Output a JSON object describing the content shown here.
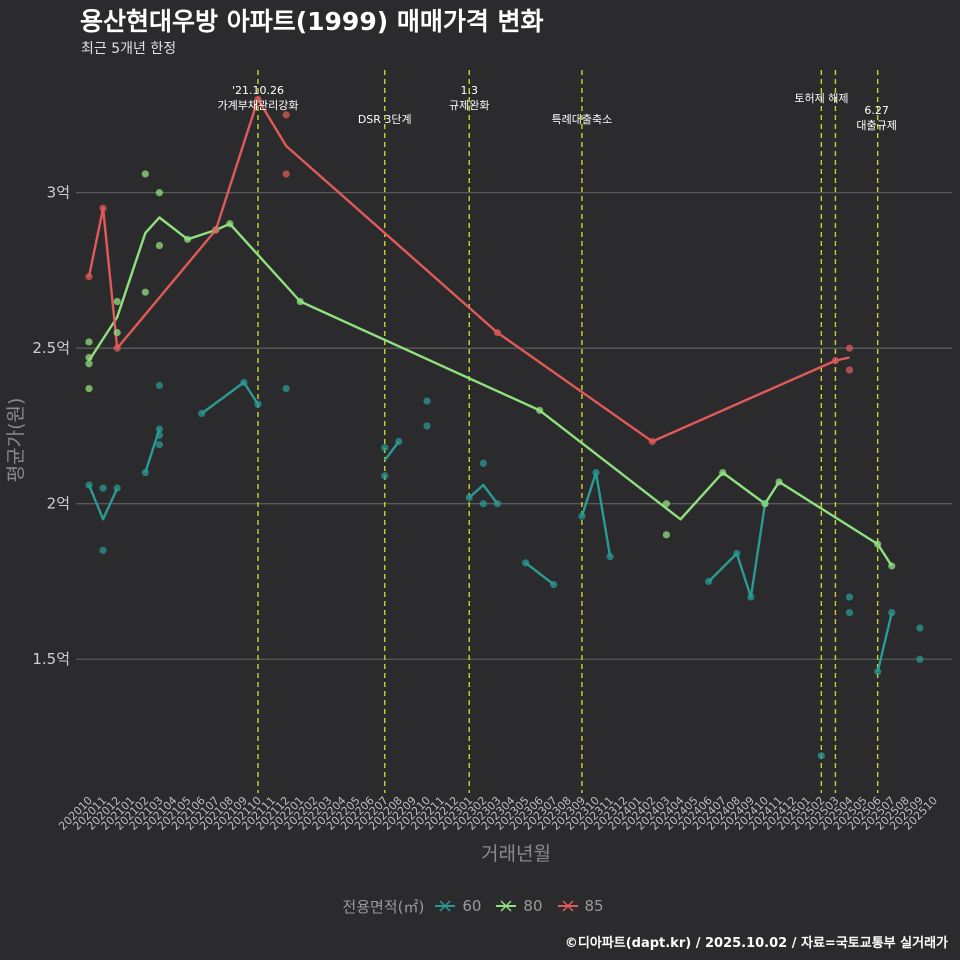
{
  "header": {
    "title": "용산현대우방 아파트(1999) 매매가격 변화",
    "subtitle": "최근 5개년 한정"
  },
  "footer": {
    "caption": "©디아파트(dapt.kr) / 2025.10.02 / 자료=국토교통부 실거래가"
  },
  "legend": {
    "title": "전용면적(㎡)",
    "items": [
      {
        "name": "60",
        "color": "#2a9a93"
      },
      {
        "name": "80",
        "color": "#90e07f"
      },
      {
        "name": "85",
        "color": "#e05a5a"
      }
    ]
  },
  "chart_data": {
    "type": "line",
    "title": "용산현대우방 아파트(1999) 매매가격 변화",
    "xlabel": "거래년월",
    "ylabel": "평균가(원)",
    "ylim": [
      1.07,
      3.42
    ],
    "y_ticks": [
      1.5,
      2.0,
      2.5,
      3.0
    ],
    "y_tick_labels": [
      "1.5억",
      "2억",
      "2.5억",
      "3억"
    ],
    "categories": [
      "202010",
      "202011",
      "202012",
      "202101",
      "202102",
      "202103",
      "202104",
      "202105",
      "202106",
      "202107",
      "202108",
      "202109",
      "202110",
      "202111",
      "202112",
      "202201",
      "202202",
      "202203",
      "202204",
      "202205",
      "202206",
      "202207",
      "202208",
      "202209",
      "202210",
      "202211",
      "202212",
      "202301",
      "202302",
      "202303",
      "202304",
      "202305",
      "202306",
      "202307",
      "202308",
      "202309",
      "202310",
      "202311",
      "202312",
      "202401",
      "202402",
      "202403",
      "202404",
      "202405",
      "202406",
      "202407",
      "202408",
      "202409",
      "202410",
      "202411",
      "202412",
      "202501",
      "202502",
      "202503",
      "202504",
      "202505",
      "202506",
      "202507",
      "202508",
      "202509",
      "202510"
    ],
    "series": [
      {
        "name": "60",
        "color": "#2a9a93",
        "line": [
          [
            "202010",
            2.06
          ],
          [
            "202011",
            1.95
          ],
          [
            "202012",
            2.05
          ],
          null,
          [
            "202102",
            2.1
          ],
          [
            "202103",
            2.24
          ],
          null,
          [
            "202106",
            2.29
          ],
          [
            "202109",
            2.39
          ],
          [
            "202110",
            2.32
          ],
          null,
          [
            "202207",
            2.14
          ],
          [
            "202208",
            2.2
          ],
          null,
          [
            "202301",
            2.02
          ],
          [
            "202302",
            2.06
          ],
          [
            "202303",
            2.0
          ],
          null,
          [
            "202305",
            1.81
          ],
          [
            "202307",
            1.74
          ],
          null,
          [
            "202309",
            1.96
          ],
          [
            "202310",
            2.1
          ],
          [
            "202311",
            1.83
          ],
          null,
          [
            "202406",
            1.75
          ],
          [
            "202408",
            1.84
          ],
          [
            "202409",
            1.7
          ],
          [
            "202410",
            2.0
          ],
          null,
          [
            "202506",
            1.46
          ],
          [
            "202507",
            1.65
          ]
        ],
        "points": [
          [
            "202010",
            2.06
          ],
          [
            "202011",
            2.05
          ],
          [
            "202011",
            1.85
          ],
          [
            "202012",
            2.05
          ],
          [
            "202102",
            2.1
          ],
          [
            "202103",
            2.38
          ],
          [
            "202103",
            2.24
          ],
          [
            "202103",
            2.22
          ],
          [
            "202103",
            2.19
          ],
          [
            "202106",
            2.29
          ],
          [
            "202109",
            2.39
          ],
          [
            "202110",
            2.32
          ],
          [
            "202112",
            2.37
          ],
          [
            "202207",
            2.18
          ],
          [
            "202207",
            2.09
          ],
          [
            "202208",
            2.2
          ],
          [
            "202210",
            2.33
          ],
          [
            "202210",
            2.25
          ],
          [
            "202301",
            2.02
          ],
          [
            "202302",
            2.13
          ],
          [
            "202302",
            2.0
          ],
          [
            "202303",
            2.0
          ],
          [
            "202305",
            1.81
          ],
          [
            "202307",
            1.74
          ],
          [
            "202309",
            1.96
          ],
          [
            "202310",
            2.1
          ],
          [
            "202311",
            1.83
          ],
          [
            "202406",
            1.75
          ],
          [
            "202408",
            1.84
          ],
          [
            "202409",
            1.7
          ],
          [
            "202410",
            2.0
          ],
          [
            "202502",
            1.19
          ],
          [
            "202504",
            1.7
          ],
          [
            "202504",
            1.65
          ],
          [
            "202506",
            1.46
          ],
          [
            "202507",
            1.65
          ],
          [
            "202509",
            1.6
          ],
          [
            "202509",
            1.5
          ]
        ]
      },
      {
        "name": "80",
        "color": "#90e07f",
        "line": [
          [
            "202010",
            2.46
          ],
          [
            "202012",
            2.6
          ],
          [
            "202102",
            2.87
          ],
          [
            "202103",
            2.92
          ],
          [
            "202105",
            2.85
          ],
          [
            "202107",
            2.88
          ],
          [
            "202108",
            2.9
          ],
          [
            "202201",
            2.65
          ],
          [
            "202306",
            2.3
          ],
          [
            "202404",
            1.95
          ],
          [
            "202407",
            2.1
          ],
          [
            "202410",
            2.0
          ],
          [
            "202411",
            2.07
          ],
          [
            "202506",
            1.87
          ],
          [
            "202507",
            1.8
          ]
        ],
        "points": [
          [
            "202010",
            2.52
          ],
          [
            "202010",
            2.47
          ],
          [
            "202010",
            2.45
          ],
          [
            "202010",
            2.37
          ],
          [
            "202012",
            2.65
          ],
          [
            "202012",
            2.55
          ],
          [
            "202102",
            3.06
          ],
          [
            "202102",
            2.68
          ],
          [
            "202103",
            3.0
          ],
          [
            "202103",
            2.83
          ],
          [
            "202105",
            2.85
          ],
          [
            "202107",
            2.88
          ],
          [
            "202108",
            2.9
          ],
          [
            "202201",
            2.65
          ],
          [
            "202306",
            2.3
          ],
          [
            "202403",
            2.0
          ],
          [
            "202403",
            1.9
          ],
          [
            "202407",
            2.1
          ],
          [
            "202410",
            2.0
          ],
          [
            "202411",
            2.07
          ],
          [
            "202506",
            1.87
          ],
          [
            "202507",
            1.8
          ]
        ]
      },
      {
        "name": "85",
        "color": "#e05a5a",
        "line": [
          [
            "202010",
            2.73
          ],
          [
            "202011",
            2.95
          ],
          [
            "202012",
            2.5
          ],
          [
            "202107",
            2.88
          ],
          [
            "202110",
            3.3
          ],
          [
            "202112",
            3.15
          ],
          [
            "202303",
            2.55
          ],
          [
            "202402",
            2.2
          ],
          [
            "202503",
            2.46
          ],
          [
            "202504",
            2.47
          ]
        ],
        "points": [
          [
            "202010",
            2.73
          ],
          [
            "202011",
            2.95
          ],
          [
            "202012",
            2.5
          ],
          [
            "202107",
            2.88
          ],
          [
            "202110",
            3.3
          ],
          [
            "202112",
            3.25
          ],
          [
            "202112",
            3.06
          ],
          [
            "202303",
            2.55
          ],
          [
            "202402",
            2.2
          ],
          [
            "202503",
            2.46
          ],
          [
            "202504",
            2.5
          ],
          [
            "202504",
            2.43
          ]
        ]
      }
    ],
    "annotations": [
      {
        "x": "202110",
        "lines": [
          "'21.10.26",
          "가계부채관리강화"
        ]
      },
      {
        "x": "202207",
        "lines": [
          "DSR 3단계"
        ]
      },
      {
        "x": "202301",
        "lines": [
          "1.3",
          "규제완화"
        ]
      },
      {
        "x": "202309",
        "lines": [
          "특례대출축소"
        ]
      },
      {
        "x": "202502",
        "lines": []
      },
      {
        "x": "202503",
        "lines": [
          "토허제 해제"
        ]
      },
      {
        "x": "202506",
        "lines": [
          "6.27",
          "대출규제"
        ]
      }
    ],
    "grid": true,
    "legend_position": "bottom"
  }
}
